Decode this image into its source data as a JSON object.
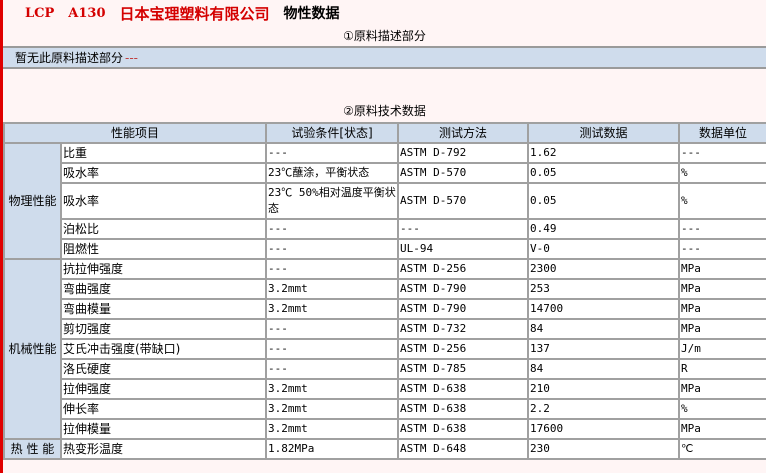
{
  "header": {
    "grade": "LCP",
    "model": "A130",
    "company": "日本宝理塑料有限公司",
    "suffix": "物性数据"
  },
  "section1": {
    "title": "①原料描述部分",
    "text": "暂无此原料描述部分",
    "dash": "---"
  },
  "section2": {
    "title": "②原料技术数据"
  },
  "table": {
    "headers": [
      "性能项目",
      "试验条件[状态]",
      "测试方法",
      "测试数据",
      "数据单位"
    ],
    "groups": [
      {
        "category": "物理性能",
        "rows": [
          [
            "比重",
            "---",
            "ASTM D-792",
            "1.62",
            "---"
          ],
          [
            "吸水率",
            "23℃蘸涂，平衡状态",
            "ASTM D-570",
            "0.05",
            "%"
          ],
          [
            "吸水率",
            "23℃ 50%相对温度平衡状态",
            "ASTM D-570",
            "0.05",
            "%"
          ],
          [
            "泊松比",
            "---",
            "---",
            "0.49",
            "---"
          ],
          [
            "阻燃性",
            "---",
            "UL-94",
            "V-0",
            "---"
          ]
        ]
      },
      {
        "category": "机械性能",
        "rows": [
          [
            "抗拉伸强度",
            "---",
            "ASTM D-256",
            "2300",
            "MPa"
          ],
          [
            "弯曲强度",
            "3.2mmt",
            "ASTM D-790",
            "253",
            "MPa"
          ],
          [
            "弯曲模量",
            "3.2mmt",
            "ASTM D-790",
            "14700",
            "MPa"
          ],
          [
            "剪切强度",
            "---",
            "ASTM D-732",
            "84",
            "MPa"
          ],
          [
            "艾氏冲击强度(带缺口)",
            "---",
            "ASTM D-256",
            "137",
            "J/m"
          ],
          [
            "洛氏硬度",
            "---",
            "ASTM D-785",
            "84",
            "R"
          ],
          [
            "拉伸强度",
            "3.2mmt",
            "ASTM D-638",
            "210",
            "MPa"
          ],
          [
            "伸长率",
            "3.2mmt",
            "ASTM D-638",
            "2.2",
            "%"
          ],
          [
            "拉伸模量",
            "3.2mmt",
            "ASTM D-638",
            "17600",
            "MPa"
          ]
        ]
      },
      {
        "category": "热 性 能",
        "rows": [
          [
            "热变形温度",
            "1.82MPa",
            "ASTM D-648",
            "230",
            "℃"
          ]
        ]
      }
    ]
  },
  "colors": {
    "accent": "#d40000",
    "header_bg": "#cfdcec",
    "border": "#a0a0a0",
    "page_bg": "#fff5f5"
  }
}
